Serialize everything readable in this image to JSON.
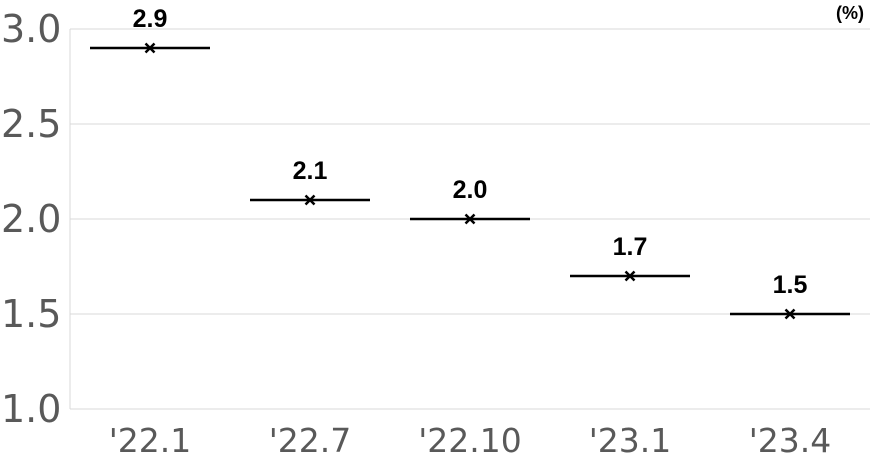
{
  "chart_data": {
    "type": "scatter",
    "categories": [
      "'22.1",
      "'22.7",
      "'22.10",
      "'23.1",
      "'23.4"
    ],
    "values": [
      2.9,
      2.1,
      2.0,
      1.7,
      1.5
    ],
    "data_labels": [
      "2.9",
      "2.1",
      "2.0",
      "1.7",
      "1.5"
    ],
    "y_ticks": [
      "1.0",
      "1.5",
      "2.0",
      "2.5",
      "3.0"
    ],
    "ylim": [
      1.0,
      3.0
    ],
    "unit": "(%)",
    "marker": "x with horizontal bar",
    "grid": true,
    "colors": {
      "marker": "#000000",
      "grid": "#d9d9d9",
      "tick_text": "#595959"
    }
  }
}
